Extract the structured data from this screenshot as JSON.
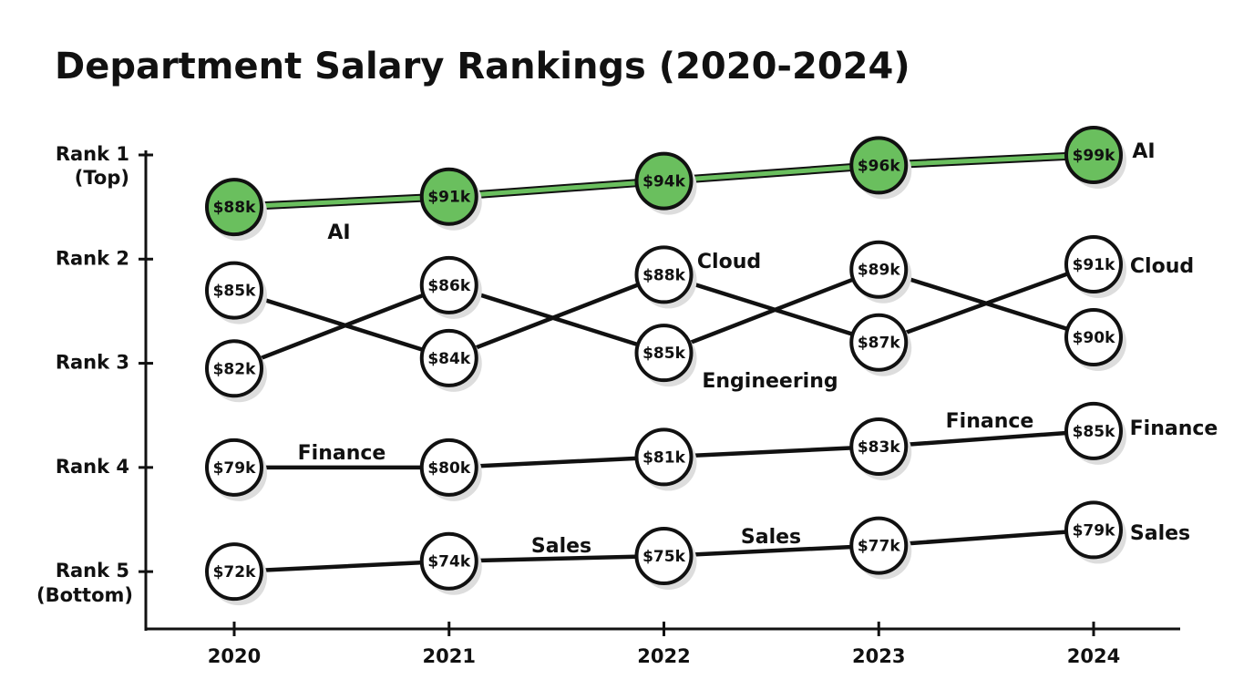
{
  "chart_data": {
    "type": "bump",
    "title": "Department Salary Rankings (2020-2024)",
    "categories": [
      "2020",
      "2021",
      "2022",
      "2023",
      "2024"
    ],
    "ylim": [
      0.95,
      5.5
    ],
    "yticks": [
      {
        "value": 1,
        "label": "Rank 1"
      },
      {
        "value": 2,
        "label": "Rank 2"
      },
      {
        "value": 3,
        "label": "Rank 3"
      },
      {
        "value": 4,
        "label": "Rank 4"
      },
      {
        "value": 5,
        "label": "Rank 5"
      }
    ],
    "top_note": "(Top)",
    "bottom_note": "(Bottom)",
    "series": [
      {
        "name": "AI",
        "color": "#111111",
        "highlight": "#6abf5e",
        "values": [
          1.5,
          1.4,
          1.25,
          1.1,
          1.0
        ],
        "salaries": [
          88,
          91,
          94,
          96,
          99
        ],
        "value_labels": [
          "$88k",
          "$91k",
          "$94k",
          "$96k",
          "$99k"
        ]
      },
      {
        "name": "Cloud",
        "color": "#111111",
        "values": [
          2.3,
          2.95,
          2.15,
          2.8,
          2.05
        ],
        "salaries": [
          85,
          84,
          88,
          87,
          91
        ],
        "value_labels": [
          "$85k",
          "$84k",
          "$88k",
          "$87k",
          "$91k"
        ]
      },
      {
        "name": "Engineering",
        "color": "#111111",
        "values": [
          3.05,
          2.25,
          2.9,
          2.1,
          2.75
        ],
        "salaries": [
          82,
          86,
          85,
          89,
          90
        ],
        "value_labels": [
          "$82k",
          "$86k",
          "$85k",
          "$89k",
          "$90k"
        ]
      },
      {
        "name": "Finance",
        "color": "#111111",
        "values": [
          4.0,
          4.0,
          3.9,
          3.8,
          3.65
        ],
        "salaries": [
          79,
          80,
          81,
          83,
          85
        ],
        "value_labels": [
          "$79k",
          "$80k",
          "$81k",
          "$83k",
          "$85k"
        ]
      },
      {
        "name": "Sales",
        "color": "#111111",
        "values": [
          5.0,
          4.9,
          4.85,
          4.75,
          4.6
        ],
        "salaries": [
          72,
          74,
          75,
          77,
          79
        ],
        "value_labels": [
          "$72k",
          "$74k",
          "$75k",
          "$77k",
          "$79k"
        ]
      }
    ]
  }
}
